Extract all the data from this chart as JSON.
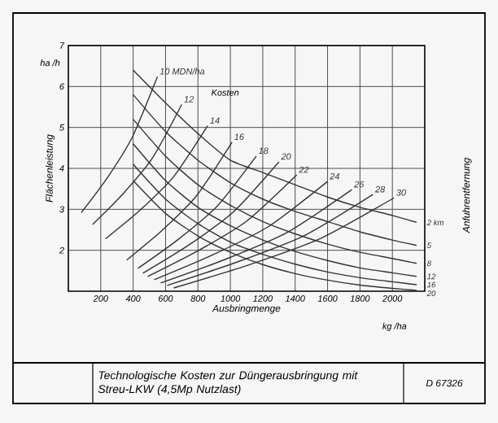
{
  "chart_data": {
    "type": "line",
    "title": "Technologische Kosten zur Düngerausbringung mit Streu-LKW (4,5Mp Nutzlast)",
    "xlabel": "Ausbringmenge",
    "ylabel": "Flächenleistung",
    "y2label": "Anfuhrentfernung",
    "xlim": [
      0,
      2200
    ],
    "ylim": [
      1,
      7
    ],
    "xticks": [
      200,
      400,
      600,
      800,
      1000,
      1200,
      1400,
      1600,
      1800,
      2000
    ],
    "yticks": [
      2,
      3,
      4,
      5,
      6,
      7
    ],
    "grid": true,
    "legend": false,
    "annotations": [
      "Kosten",
      "ha /h",
      "kg /ha",
      "D 67326"
    ],
    "series": [
      {
        "name": "10 MDN/ha",
        "color": "#333333",
        "x": [
          80,
          237,
          393,
          550
        ],
        "values": [
          2.92,
          3.75,
          4.75,
          6.24
        ]
      },
      {
        "name": "12",
        "color": "#333333",
        "x": [
          150,
          333,
          517,
          700
        ],
        "values": [
          2.63,
          3.36,
          4.24,
          5.56
        ]
      },
      {
        "name": "14",
        "color": "#333333",
        "x": [
          230,
          440,
          650,
          860
        ],
        "values": [
          2.28,
          2.97,
          3.8,
          5.04
        ]
      },
      {
        "name": "16",
        "color": "#333333",
        "x": [
          360,
          577,
          793,
          1010
        ],
        "values": [
          1.76,
          2.48,
          3.34,
          4.64
        ]
      },
      {
        "name": "18",
        "color": "#333333",
        "x": [
          430,
          673,
          917,
          1160
        ],
        "values": [
          1.56,
          2.25,
          3.07,
          4.3
        ]
      },
      {
        "name": "20",
        "color": "#333333",
        "x": [
          460,
          740,
          1020,
          1300
        ],
        "values": [
          1.44,
          2.12,
          2.94,
          4.16
        ]
      },
      {
        "name": "22",
        "color": "#333333",
        "x": [
          490,
          797,
          1103,
          1410
        ],
        "values": [
          1.36,
          1.98,
          2.72,
          3.84
        ]
      },
      {
        "name": "24",
        "color": "#333333",
        "x": [
          530,
          887,
          1243,
          1600
        ],
        "values": [
          1.28,
          1.88,
          2.6,
          3.68
        ]
      },
      {
        "name": "26",
        "color": "#333333",
        "x": [
          570,
          963,
          1357,
          1750
        ],
        "values": [
          1.2,
          1.77,
          2.45,
          3.48
        ]
      },
      {
        "name": "28",
        "color": "#333333",
        "x": [
          610,
          1033,
          1457,
          1880
        ],
        "values": [
          1.14,
          1.7,
          2.36,
          3.36
        ]
      },
      {
        "name": "30",
        "color": "#333333",
        "x": [
          650,
          1103,
          1557,
          2010
        ],
        "values": [
          1.08,
          1.63,
          2.29,
          3.28
        ]
      },
      {
        "name": "2 km",
        "color": "#333333",
        "x": [
          400,
          600,
          800,
          1000,
          1200,
          1400,
          1600,
          1800,
          2000,
          2150
        ],
        "values": [
          6.4,
          5.6,
          4.85,
          4.2,
          3.9,
          3.6,
          3.3,
          3.05,
          2.85,
          2.68
        ]
      },
      {
        "name": "5",
        "color": "#333333",
        "x": [
          400,
          600,
          800,
          1000,
          1200,
          1400,
          1600,
          1800,
          2000,
          2150
        ],
        "values": [
          5.8,
          4.9,
          4.2,
          3.65,
          3.25,
          2.95,
          2.7,
          2.45,
          2.25,
          2.12
        ]
      },
      {
        "name": "8",
        "color": "#333333",
        "x": [
          400,
          600,
          800,
          1000,
          1200,
          1400,
          1600,
          1800,
          2000,
          2150
        ],
        "values": [
          5.2,
          4.3,
          3.6,
          3.1,
          2.7,
          2.4,
          2.15,
          1.95,
          1.8,
          1.68
        ]
      },
      {
        "name": "12",
        "color": "#333333",
        "x": [
          400,
          600,
          800,
          1000,
          1200,
          1400,
          1600,
          1800,
          2000,
          2150
        ],
        "values": [
          4.6,
          3.7,
          3.05,
          2.6,
          2.25,
          1.97,
          1.75,
          1.57,
          1.45,
          1.36
        ]
      },
      {
        "name": "16",
        "color": "#333333",
        "x": [
          400,
          600,
          800,
          1000,
          1200,
          1400,
          1600,
          1800,
          2000,
          2150
        ],
        "values": [
          4.1,
          3.25,
          2.65,
          2.2,
          1.9,
          1.66,
          1.47,
          1.33,
          1.23,
          1.16
        ]
      },
      {
        "name": "20",
        "color": "#333333",
        "x": [
          400,
          600,
          800,
          1000,
          1200,
          1400,
          1600,
          1800,
          2000,
          2150
        ],
        "values": [
          3.7,
          2.9,
          2.35,
          1.95,
          1.65,
          1.43,
          1.27,
          1.15,
          1.07,
          1.02
        ]
      }
    ]
  }
}
